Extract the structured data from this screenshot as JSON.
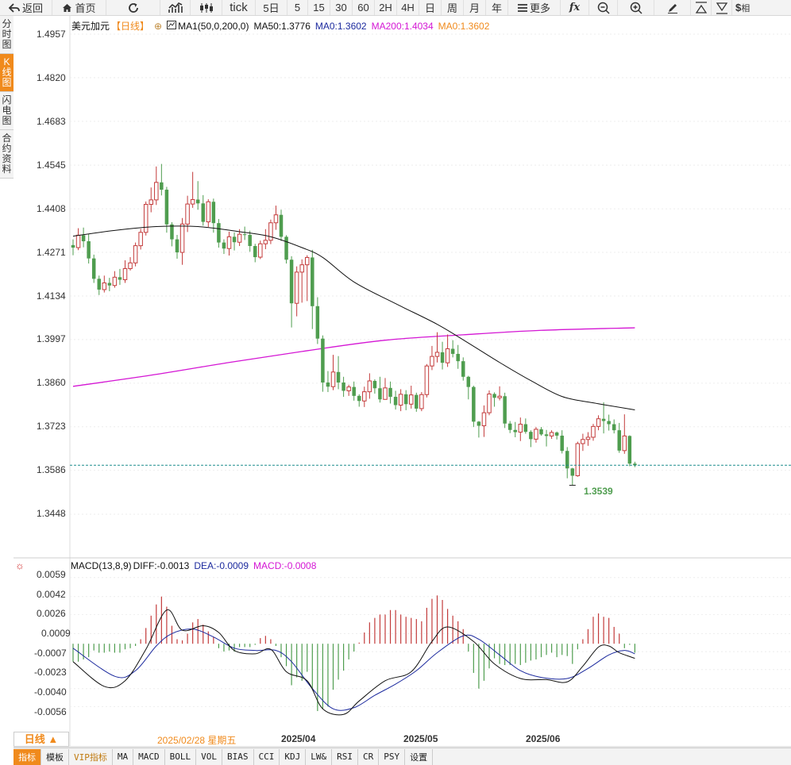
{
  "toolbar": {
    "back": "返回",
    "home": "首页",
    "tick": "tick",
    "five_day": "5日",
    "periods": [
      "5",
      "15",
      "30",
      "60",
      "2H",
      "4H",
      "日",
      "周",
      "月",
      "年"
    ],
    "more": "更多",
    "fx": "fx",
    "dollar": "$",
    "truncated": "相"
  },
  "side_tabs": [
    "分时图",
    "K线图",
    "闪电图",
    "合约资料"
  ],
  "header": {
    "symbol": "美元加元",
    "period": "【日线】",
    "ma_name": "MA1(50,0,200,0)",
    "ma50": "MA50:1.3776",
    "ma0a": "MA0:1.3602",
    "ma200": "MA200:1.4034",
    "ma0b": "MA0:1.3602"
  },
  "price_axis": [
    "1.4957",
    "1.4820",
    "1.4683",
    "1.4545",
    "1.4408",
    "1.4271",
    "1.4134",
    "1.3997",
    "1.3860",
    "1.3723",
    "1.3586",
    "1.3448"
  ],
  "low_marker": "1.3539",
  "macd_header": {
    "name": "MACD(13,8,9)",
    "diff": "DIFF:-0.0013",
    "dea": "DEA:-0.0009",
    "macd": "MACD:-0.0008"
  },
  "macd_axis": [
    "0.0059",
    "0.0042",
    "0.0026",
    "0.0009",
    "-0.0007",
    "-0.0023",
    "-0.0040",
    "-0.0056"
  ],
  "time_axis": {
    "highlight": "2025/02/28 星期五",
    "months": [
      "2025/04",
      "2025/05",
      "2025/06"
    ]
  },
  "period_badge": "日线 ▲",
  "bottom_tabs": [
    "指标",
    "模板",
    "VIP指标",
    "MA",
    "MACD",
    "BOLL",
    "VOL",
    "BIAS",
    "CCI",
    "KDJ",
    "LW&",
    "RSI",
    "CR",
    "PSY",
    "设置"
  ],
  "colors": {
    "up": "#c33b3b",
    "down": "#4f9d4f",
    "ma50": "#111111",
    "ma200": "#d416d4",
    "dea": "#1c2a9e",
    "accent": "#f08a1c",
    "last_price": "#1a8c8c"
  },
  "chart_data": [
    {
      "type": "candlestick",
      "title": "美元加元 日线",
      "ylim": [
        1.3448,
        1.4957
      ],
      "x_labels": [
        "2025/04",
        "2025/05",
        "2025/06"
      ],
      "candles": [
        [
          1.4294,
          1.4286,
          1.4312,
          1.4262
        ],
        [
          1.4286,
          1.4325,
          1.4347,
          1.4278
        ],
        [
          1.4325,
          1.4306,
          1.4349,
          1.4287
        ],
        [
          1.4306,
          1.4252,
          1.4328,
          1.4236
        ],
        [
          1.4252,
          1.4188,
          1.4264,
          1.4175
        ],
        [
          1.4188,
          1.4154,
          1.4198,
          1.4137
        ],
        [
          1.4154,
          1.4175,
          1.4198,
          1.4145
        ],
        [
          1.4175,
          1.4167,
          1.4191,
          1.4149
        ],
        [
          1.4167,
          1.4193,
          1.4212,
          1.416
        ],
        [
          1.4193,
          1.4185,
          1.4219,
          1.4169
        ],
        [
          1.4185,
          1.422,
          1.4246,
          1.4175
        ],
        [
          1.422,
          1.4238,
          1.4256,
          1.4214
        ],
        [
          1.4238,
          1.4292,
          1.4302,
          1.4227
        ],
        [
          1.4292,
          1.4334,
          1.4345,
          1.428
        ],
        [
          1.4334,
          1.4422,
          1.4431,
          1.4324
        ],
        [
          1.4422,
          1.4436,
          1.4475,
          1.4397
        ],
        [
          1.4436,
          1.4491,
          1.4541,
          1.442
        ],
        [
          1.4491,
          1.4468,
          1.4549,
          1.445
        ],
        [
          1.4468,
          1.4359,
          1.4477,
          1.4333
        ],
        [
          1.4359,
          1.4312,
          1.4366,
          1.429
        ],
        [
          1.4312,
          1.4271,
          1.4326,
          1.4251
        ],
        [
          1.4271,
          1.436,
          1.4379,
          1.4232
        ],
        [
          1.436,
          1.4423,
          1.4449,
          1.4335
        ],
        [
          1.4423,
          1.4437,
          1.4524,
          1.4411
        ],
        [
          1.4437,
          1.4425,
          1.4495,
          1.4405
        ],
        [
          1.4425,
          1.4367,
          1.4451,
          1.4355
        ],
        [
          1.4367,
          1.443,
          1.4438,
          1.4351
        ],
        [
          1.443,
          1.4363,
          1.444,
          1.4333
        ],
        [
          1.4363,
          1.4302,
          1.4376,
          1.4286
        ],
        [
          1.4302,
          1.4283,
          1.4312,
          1.4266
        ],
        [
          1.4283,
          1.432,
          1.4336,
          1.4261
        ],
        [
          1.432,
          1.4303,
          1.4334,
          1.4277
        ],
        [
          1.4303,
          1.4328,
          1.4344,
          1.4291
        ],
        [
          1.4328,
          1.4326,
          1.4352,
          1.431
        ],
        [
          1.4326,
          1.4291,
          1.4339,
          1.4273
        ],
        [
          1.4291,
          1.4256,
          1.4298,
          1.424
        ],
        [
          1.4256,
          1.4298,
          1.4308,
          1.425
        ],
        [
          1.4298,
          1.4309,
          1.4344,
          1.4281
        ],
        [
          1.4309,
          1.4364,
          1.4374,
          1.4297
        ],
        [
          1.4364,
          1.4389,
          1.4418,
          1.4342
        ],
        [
          1.4389,
          1.432,
          1.4405,
          1.4307
        ],
        [
          1.432,
          1.4248,
          1.4325,
          1.4236
        ],
        [
          1.4248,
          1.4111,
          1.4259,
          1.4035
        ],
        [
          1.4111,
          1.4209,
          1.4227,
          1.407
        ],
        [
          1.4209,
          1.4232,
          1.4249,
          1.4113
        ],
        [
          1.4232,
          1.4255,
          1.4262,
          1.4118
        ],
        [
          1.4255,
          1.4102,
          1.4279,
          1.403
        ],
        [
          1.4102,
          1.4,
          1.413,
          1.3983
        ],
        [
          1.4,
          1.3862,
          1.401,
          1.3833
        ],
        [
          1.3862,
          1.3849,
          1.3898,
          1.3832
        ],
        [
          1.3849,
          1.3895,
          1.3949,
          1.3838
        ],
        [
          1.3895,
          1.3862,
          1.3945,
          1.3841
        ],
        [
          1.3862,
          1.3836,
          1.388,
          1.3817
        ],
        [
          1.3836,
          1.3848,
          1.3855,
          1.382
        ],
        [
          1.3848,
          1.382,
          1.3865,
          1.3805
        ],
        [
          1.382,
          1.3804,
          1.3825,
          1.3786
        ],
        [
          1.3804,
          1.3833,
          1.3849,
          1.3785
        ],
        [
          1.3833,
          1.3867,
          1.3891,
          1.3811
        ],
        [
          1.3867,
          1.3844,
          1.3872,
          1.3827
        ],
        [
          1.3844,
          1.3809,
          1.388,
          1.3799
        ],
        [
          1.3809,
          1.3845,
          1.3876,
          1.3808
        ],
        [
          1.3845,
          1.3817,
          1.3865,
          1.3796
        ],
        [
          1.3817,
          1.3791,
          1.3836,
          1.3777
        ],
        [
          1.3791,
          1.3825,
          1.3841,
          1.3772
        ],
        [
          1.3825,
          1.3794,
          1.3838,
          1.3775
        ],
        [
          1.3794,
          1.3823,
          1.3852,
          1.378
        ],
        [
          1.3823,
          1.378,
          1.383,
          1.377
        ],
        [
          1.378,
          1.3824,
          1.3832,
          1.3772
        ],
        [
          1.3824,
          1.3914,
          1.392,
          1.3815
        ],
        [
          1.3914,
          1.3944,
          1.3977,
          1.3901
        ],
        [
          1.3944,
          1.3957,
          1.402,
          1.3925
        ],
        [
          1.3957,
          1.3924,
          1.399,
          1.3903
        ],
        [
          1.3924,
          1.3968,
          1.4013,
          1.3911
        ],
        [
          1.3968,
          1.3952,
          1.3995,
          1.3941
        ],
        [
          1.3952,
          1.3929,
          1.398,
          1.3905
        ],
        [
          1.3929,
          1.388,
          1.3941,
          1.3868
        ],
        [
          1.388,
          1.3848,
          1.3883,
          1.3809
        ],
        [
          1.3848,
          1.3739,
          1.3852,
          1.3722
        ],
        [
          1.3739,
          1.3726,
          1.3741,
          1.3689
        ],
        [
          1.3726,
          1.3767,
          1.379,
          1.3691
        ],
        [
          1.3767,
          1.3826,
          1.3837,
          1.3759
        ],
        [
          1.3826,
          1.3814,
          1.3831,
          1.3786
        ],
        [
          1.3814,
          1.3819,
          1.385,
          1.3806
        ],
        [
          1.3819,
          1.3733,
          1.383,
          1.3719
        ],
        [
          1.3733,
          1.3713,
          1.3741,
          1.3703
        ],
        [
          1.3713,
          1.3706,
          1.3738,
          1.369
        ],
        [
          1.3706,
          1.3731,
          1.3752,
          1.3678
        ],
        [
          1.3731,
          1.3707,
          1.3749,
          1.3701
        ],
        [
          1.3707,
          1.3684,
          1.3712,
          1.3659
        ],
        [
          1.3684,
          1.3715,
          1.3722,
          1.3673
        ],
        [
          1.3715,
          1.3699,
          1.3722,
          1.3695
        ],
        [
          1.3699,
          1.3694,
          1.3713,
          1.3661
        ],
        [
          1.3694,
          1.3705,
          1.3712,
          1.3685
        ],
        [
          1.3705,
          1.3695,
          1.3708,
          1.3683
        ],
        [
          1.3695,
          1.3647,
          1.3712,
          1.3639
        ],
        [
          1.3647,
          1.3592,
          1.3659,
          1.3561
        ],
        [
          1.3592,
          1.3569,
          1.3594,
          1.3539
        ],
        [
          1.3569,
          1.367,
          1.3676,
          1.3566
        ],
        [
          1.367,
          1.3683,
          1.3701,
          1.3647
        ],
        [
          1.3683,
          1.369,
          1.3706,
          1.3663
        ],
        [
          1.369,
          1.3724,
          1.3732,
          1.3679
        ],
        [
          1.3724,
          1.3748,
          1.3759,
          1.3712
        ],
        [
          1.3748,
          1.3741,
          1.38,
          1.3702
        ],
        [
          1.3741,
          1.3731,
          1.3761,
          1.3711
        ],
        [
          1.3731,
          1.3712,
          1.3746,
          1.3702
        ],
        [
          1.3712,
          1.3648,
          1.3735,
          1.3641
        ],
        [
          1.3648,
          1.3694,
          1.3762,
          1.3638
        ],
        [
          1.3694,
          1.3607,
          1.3696,
          1.3599
        ],
        [
          1.3607,
          1.3602,
          1.3613,
          1.3596
        ]
      ],
      "ma50": [
        {
          "i": 0,
          "v": 1.4322
        },
        {
          "i": 8,
          "v": 1.434
        },
        {
          "i": 16,
          "v": 1.4352
        },
        {
          "i": 24,
          "v": 1.4352
        },
        {
          "i": 32,
          "v": 1.4336
        },
        {
          "i": 38,
          "v": 1.432
        },
        {
          "i": 44,
          "v": 1.4286
        },
        {
          "i": 48,
          "v": 1.4255
        },
        {
          "i": 54,
          "v": 1.4178
        },
        {
          "i": 62,
          "v": 1.411
        },
        {
          "i": 70,
          "v": 1.4045
        },
        {
          "i": 76,
          "v": 1.3986
        },
        {
          "i": 82,
          "v": 1.3925
        },
        {
          "i": 88,
          "v": 1.3868
        },
        {
          "i": 94,
          "v": 1.3818
        },
        {
          "i": 100,
          "v": 1.3798
        },
        {
          "i": 108,
          "v": 1.3776
        }
      ],
      "ma200": [
        {
          "i": 0,
          "v": 1.385
        },
        {
          "i": 15,
          "v": 1.3885
        },
        {
          "i": 30,
          "v": 1.3925
        },
        {
          "i": 45,
          "v": 1.3962
        },
        {
          "i": 60,
          "v": 1.3995
        },
        {
          "i": 75,
          "v": 1.4012
        },
        {
          "i": 90,
          "v": 1.4026
        },
        {
          "i": 108,
          "v": 1.4034
        }
      ],
      "last_price": 1.3602,
      "low": {
        "i": 96,
        "v": 1.3539
      }
    },
    {
      "type": "macd",
      "title": "MACD(13,8,9)",
      "ylim": [
        -0.0072,
        0.0068
      ],
      "hist": [
        -0.0016,
        -0.0016,
        -0.0014,
        -0.0012,
        -0.0006,
        -0.0008,
        -0.0008,
        -0.0007,
        -0.0008,
        -0.0008,
        -0.0005,
        -0.0004,
        -0.0002,
        0.0004,
        0.0014,
        0.0025,
        0.0035,
        0.0042,
        0.0033,
        0.0016,
        0.0004,
        0.0003,
        0.0009,
        0.0019,
        0.0022,
        0.0017,
        0.0011,
        0.0006,
        -0.0004,
        -0.0007,
        -0.0006,
        -0.0007,
        -0.0003,
        -0.0003,
        -0.0003,
        -0.0001,
        0.0005,
        0.0007,
        0.0004,
        -0.0002,
        -0.0012,
        -0.002,
        -0.0037,
        -0.003,
        -0.0033,
        -0.0025,
        -0.004,
        -0.006,
        -0.0058,
        -0.0056,
        -0.0041,
        -0.0032,
        -0.0024,
        -0.0014,
        -0.0007,
        0.0001,
        0.001,
        0.0019,
        0.0023,
        0.0026,
        0.0026,
        0.003,
        0.003,
        0.0026,
        0.0024,
        0.0023,
        0.0022,
        0.002,
        0.0032,
        0.004,
        0.0043,
        0.0039,
        0.0031,
        0.0025,
        0.002,
        0.0013,
        -0.0007,
        -0.0026,
        -0.004,
        -0.0033,
        -0.0022,
        -0.0013,
        -0.0018,
        -0.0019,
        -0.0019,
        -0.0018,
        -0.0019,
        -0.0017,
        -0.0015,
        -0.0014,
        -0.0012,
        -0.001,
        -0.0008,
        -0.0012,
        -0.001,
        -0.0011,
        -0.0018,
        -0.0005,
        0.0004,
        0.0013,
        0.0024,
        0.0027,
        0.0024,
        0.0023,
        0.0015,
        0.0009,
        -0.0004,
        -0.0001,
        -0.0008
      ],
      "diff": [
        {
          "i": 0,
          "v": -0.0016
        },
        {
          "i": 6,
          "v": -0.0038
        },
        {
          "i": 10,
          "v": -0.0033
        },
        {
          "i": 14,
          "v": -0.0005
        },
        {
          "i": 18,
          "v": 0.003
        },
        {
          "i": 21,
          "v": 0.0012
        },
        {
          "i": 25,
          "v": 0.0016
        },
        {
          "i": 28,
          "v": 0.001
        },
        {
          "i": 31,
          "v": -0.0006
        },
        {
          "i": 35,
          "v": -0.0009
        },
        {
          "i": 38,
          "v": -0.0005
        },
        {
          "i": 41,
          "v": -0.0025
        },
        {
          "i": 45,
          "v": -0.0033
        },
        {
          "i": 48,
          "v": -0.0058
        },
        {
          "i": 52,
          "v": -0.0063
        },
        {
          "i": 55,
          "v": -0.0051
        },
        {
          "i": 60,
          "v": -0.0033
        },
        {
          "i": 65,
          "v": -0.0025
        },
        {
          "i": 69,
          "v": 0.0002
        },
        {
          "i": 72,
          "v": 0.0015
        },
        {
          "i": 77,
          "v": 0.0002
        },
        {
          "i": 81,
          "v": -0.0018
        },
        {
          "i": 86,
          "v": -0.0031
        },
        {
          "i": 91,
          "v": -0.0032
        },
        {
          "i": 95,
          "v": -0.0034
        },
        {
          "i": 98,
          "v": -0.002
        },
        {
          "i": 101,
          "v": -0.0003
        },
        {
          "i": 103,
          "v": -0.0002
        },
        {
          "i": 105,
          "v": -0.0008
        },
        {
          "i": 108,
          "v": -0.0013
        }
      ],
      "dea": [
        {
          "i": 0,
          "v": -0.0004
        },
        {
          "i": 8,
          "v": -0.0029
        },
        {
          "i": 12,
          "v": -0.0024
        },
        {
          "i": 16,
          "v": -0.0002
        },
        {
          "i": 19,
          "v": 0.0009
        },
        {
          "i": 23,
          "v": 0.0013
        },
        {
          "i": 27,
          "v": 0.0006
        },
        {
          "i": 31,
          "v": -0.0004
        },
        {
          "i": 35,
          "v": -0.0006
        },
        {
          "i": 39,
          "v": -0.0006
        },
        {
          "i": 42,
          "v": -0.0016
        },
        {
          "i": 46,
          "v": -0.004
        },
        {
          "i": 50,
          "v": -0.0058
        },
        {
          "i": 54,
          "v": -0.0057
        },
        {
          "i": 58,
          "v": -0.0046
        },
        {
          "i": 62,
          "v": -0.0036
        },
        {
          "i": 66,
          "v": -0.0024
        },
        {
          "i": 70,
          "v": -0.0008
        },
        {
          "i": 75,
          "v": 0.0007
        },
        {
          "i": 78,
          "v": 0.0004
        },
        {
          "i": 82,
          "v": -0.001
        },
        {
          "i": 86,
          "v": -0.0024
        },
        {
          "i": 90,
          "v": -0.003
        },
        {
          "i": 95,
          "v": -0.0031
        },
        {
          "i": 99,
          "v": -0.0022
        },
        {
          "i": 103,
          "v": -0.001
        },
        {
          "i": 106,
          "v": -0.0006
        },
        {
          "i": 108,
          "v": -0.0009
        }
      ]
    }
  ]
}
